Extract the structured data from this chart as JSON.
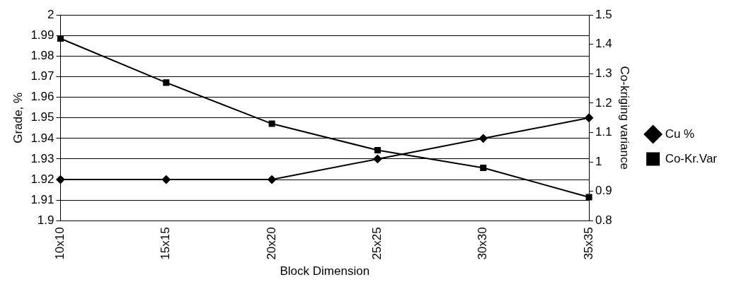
{
  "chart_data": {
    "type": "line",
    "xlabel": "Block Dimension",
    "ylabel": "Grade, %",
    "y2label": "Co-kriging variance",
    "categories": [
      "10x10",
      "15x15",
      "20x20",
      "25x25",
      "30x30",
      "35x35"
    ],
    "series": [
      {
        "name": "Cu %",
        "color": "#000000",
        "values": [
          1.92,
          1.92,
          1.92,
          1.93,
          1.94,
          1.95
        ],
        "marker": "diamond"
      },
      {
        "name": "Co-Kr.Var",
        "color": "#000000",
        "values": [
          1.42,
          1.27,
          1.13,
          1.04,
          0.98,
          0.88
        ],
        "marker": "square",
        "axis": "y2"
      }
    ],
    "ylim": [
      1.9,
      2
    ],
    "yticks": [
      1.9,
      1.91,
      1.92,
      1.93,
      1.94,
      1.95,
      1.96,
      1.97,
      1.98,
      1.99,
      2
    ],
    "y2lim": [
      0.8,
      1.5
    ],
    "y2ticks": [
      0.8,
      0.9,
      1,
      1.1,
      1.2,
      1.3,
      1.4,
      1.5
    ],
    "grid": "y",
    "legend": "right",
    "line_style": "solid"
  }
}
